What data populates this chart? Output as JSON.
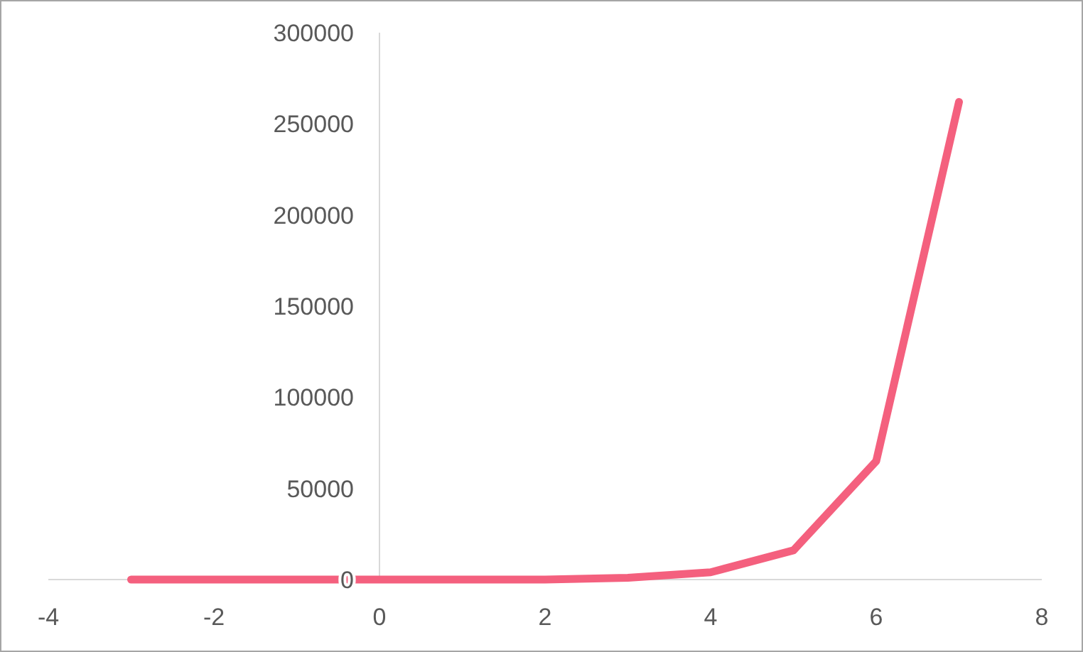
{
  "chart_data": {
    "type": "line",
    "x": [
      -3,
      -2,
      -1,
      0,
      1,
      2,
      3,
      4,
      5,
      6,
      7
    ],
    "series": [
      {
        "color": "#f4607e",
        "values": [
          0,
          0,
          0,
          0,
          0,
          0,
          1000,
          4000,
          16000,
          65000,
          262000
        ]
      }
    ],
    "xlim": [
      -4,
      8
    ],
    "xticks": [
      -4,
      -2,
      0,
      2,
      4,
      6,
      8
    ],
    "ylim": [
      0,
      300000
    ],
    "yticks": [
      0,
      50000,
      100000,
      150000,
      200000,
      250000,
      300000
    ],
    "grid": false,
    "marker": "none",
    "line_style": "solid"
  }
}
